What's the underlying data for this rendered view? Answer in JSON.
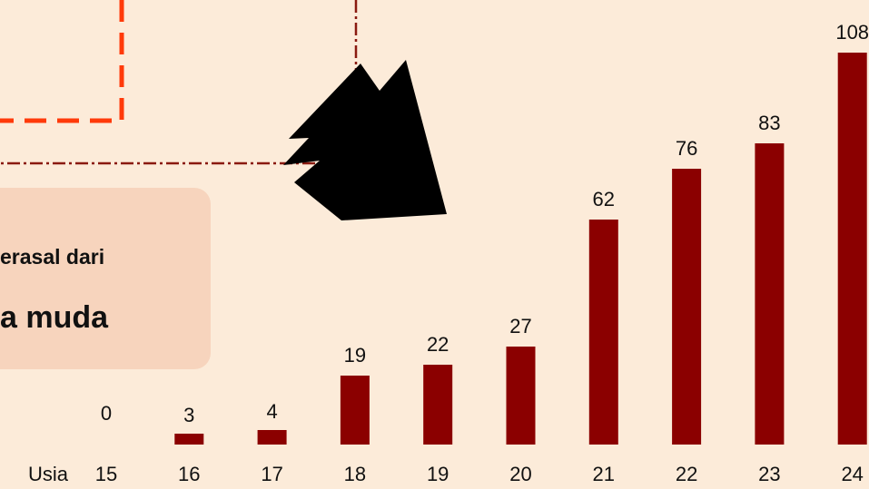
{
  "callout": {
    "line1": "erasal dari",
    "line2": "a muda"
  },
  "colors": {
    "background": "#fcebd9",
    "bar": "#8b0000",
    "callout_bg": "#f7d4bd",
    "dashed_box": "#ff3a0a",
    "dashdot_line": "#8a1a10",
    "arrow": "#000000"
  },
  "chart_data": {
    "type": "bar",
    "xlabel": "Usia",
    "categories": [
      "15",
      "16",
      "17",
      "18",
      "19",
      "20",
      "21",
      "22",
      "23",
      "24"
    ],
    "values": [
      0,
      3,
      4,
      19,
      22,
      27,
      62,
      76,
      83,
      108
    ],
    "data_labels": [
      "0",
      "3",
      "4",
      "19",
      "22",
      "27",
      "62",
      "76",
      "83",
      "108"
    ],
    "grid": false,
    "legend": "none"
  }
}
